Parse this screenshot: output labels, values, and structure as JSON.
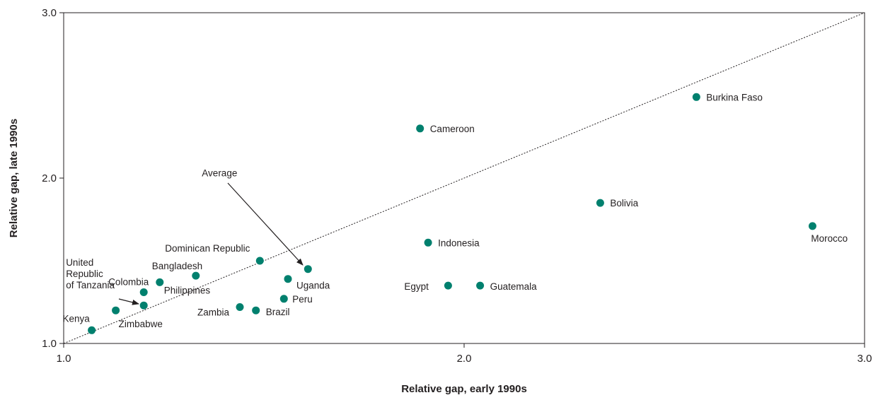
{
  "chart_data": {
    "type": "scatter",
    "xlabel": "Relative gap, early 1990s",
    "ylabel": "Relative gap, late 1990s",
    "xlim": [
      1.0,
      3.0
    ],
    "ylim": [
      1.0,
      3.0
    ],
    "xticks": [
      "1.0",
      "2.0",
      "3.0"
    ],
    "yticks": [
      "1.0",
      "2.0",
      "3.0"
    ],
    "grid": false,
    "reference_line": "y = x (dotted)",
    "point_color": "#00806e",
    "points": [
      {
        "name": "Kenya",
        "x": 1.07,
        "y": 1.08
      },
      {
        "name": "Zimbabwe",
        "x": 1.13,
        "y": 1.2
      },
      {
        "name": "United Republic of Tanzania",
        "x": 1.2,
        "y": 1.23
      },
      {
        "name": "Colombia",
        "x": 1.2,
        "y": 1.31
      },
      {
        "name": "Philippines",
        "x": 1.24,
        "y": 1.37
      },
      {
        "name": "Bangladesh",
        "x": 1.33,
        "y": 1.41
      },
      {
        "name": "Dominican Republic",
        "x": 1.49,
        "y": 1.5
      },
      {
        "name": "Zambia",
        "x": 1.44,
        "y": 1.22
      },
      {
        "name": "Brazil",
        "x": 1.48,
        "y": 1.2
      },
      {
        "name": "Peru",
        "x": 1.55,
        "y": 1.27
      },
      {
        "name": "Uganda",
        "x": 1.56,
        "y": 1.39
      },
      {
        "name": "Average",
        "x": 1.61,
        "y": 1.45
      },
      {
        "name": "Cameroon",
        "x": 1.89,
        "y": 2.3
      },
      {
        "name": "Indonesia",
        "x": 1.91,
        "y": 1.61
      },
      {
        "name": "Egypt",
        "x": 1.96,
        "y": 1.35
      },
      {
        "name": "Guatemala",
        "x": 2.04,
        "y": 1.35
      },
      {
        "name": "Bolivia",
        "x": 2.34,
        "y": 1.85
      },
      {
        "name": "Burkina Faso",
        "x": 2.58,
        "y": 2.49
      },
      {
        "name": "Morocco",
        "x": 2.87,
        "y": 1.71
      }
    ]
  }
}
